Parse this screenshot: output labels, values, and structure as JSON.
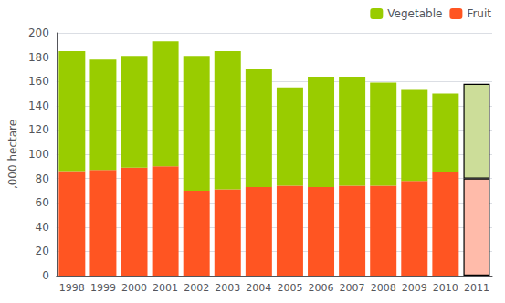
{
  "chart_data": {
    "type": "bar",
    "stacked": true,
    "categories": [
      "1998",
      "1999",
      "2000",
      "2001",
      "2002",
      "2003",
      "2004",
      "2005",
      "2006",
      "2007",
      "2008",
      "2009",
      "2010",
      "2011"
    ],
    "series": [
      {
        "name": "Fruit",
        "color": "#FF5522",
        "colors": [
          "#FF5522",
          "#FF5522",
          "#FF5522",
          "#FF5522",
          "#FF5522",
          "#FF5522",
          "#FF5522",
          "#FF5522",
          "#FF5522",
          "#FF5522",
          "#FF5522",
          "#FF5522",
          "#FF5522",
          "#FFBBAA"
        ],
        "values": [
          86,
          87,
          89,
          90,
          70,
          71,
          73,
          74,
          73,
          74,
          74,
          78,
          85,
          80
        ]
      },
      {
        "name": "Vegetable",
        "color": "#99CC00",
        "colors": [
          "#99CC00",
          "#99CC00",
          "#99CC00",
          "#99CC00",
          "#99CC00",
          "#99CC00",
          "#99CC00",
          "#99CC00",
          "#99CC00",
          "#99CC00",
          "#99CC00",
          "#99CC00",
          "#99CC00",
          "#CCDD99"
        ],
        "values": [
          99,
          91,
          92,
          103,
          111,
          114,
          97,
          81,
          91,
          90,
          85,
          75,
          65,
          78
        ]
      }
    ],
    "ylabel": ",000 hectare",
    "ylim": [
      0,
      200
    ],
    "yticks": [
      0,
      20,
      40,
      60,
      80,
      100,
      120,
      140,
      160,
      180,
      200
    ],
    "grid": true,
    "legend": "upper right"
  }
}
